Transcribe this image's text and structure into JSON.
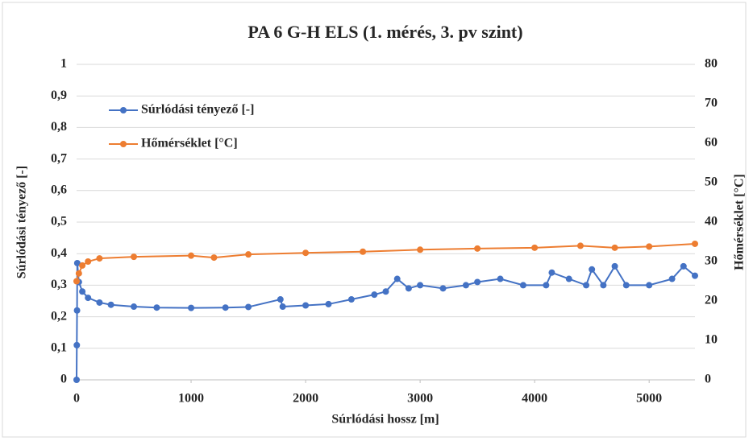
{
  "chart_data": {
    "type": "scatter",
    "title": "PA 6 G-H ELS (1. mérés, 3. pv szint)",
    "xlabel": "Súrlódási hossz [m]",
    "ylabel": "Súrlódási tényező [-]",
    "y2label": "Hőmérséklet [°C]",
    "xlim": [
      0,
      5400
    ],
    "xticks": [
      0,
      1000,
      2000,
      3000,
      4000,
      5000
    ],
    "ylim": [
      0,
      1
    ],
    "yticks": [
      0,
      {
        "value": 0.1,
        "label": "0,1"
      },
      {
        "value": 0.2,
        "label": "0,2"
      },
      {
        "value": 0.3,
        "label": "0,3"
      },
      {
        "value": 0.4,
        "label": "0,4"
      },
      {
        "value": 0.5,
        "label": "0,5"
      },
      {
        "value": 0.6,
        "label": "0,6"
      },
      {
        "value": 0.7,
        "label": "0,7"
      },
      {
        "value": 0.8,
        "label": "0,8"
      },
      {
        "value": 0.9,
        "label": "0,9"
      },
      1
    ],
    "y2lim": [
      0,
      80
    ],
    "y2ticks": [
      0,
      10,
      20,
      30,
      40,
      50,
      60,
      70,
      80
    ],
    "legend": "upper left",
    "series": [
      {
        "name": "Súrlódási tényező [-]",
        "color": "#4472c4",
        "x": [
          0,
          2,
          4,
          6,
          20,
          50,
          100,
          200,
          300,
          500,
          700,
          1000,
          1300,
          1500,
          1780,
          1800,
          2000,
          2200,
          2400,
          2600,
          2700,
          2800,
          2900,
          3000,
          3200,
          3400,
          3500,
          3700,
          3900,
          4100,
          4150,
          4300,
          4450,
          4500,
          4600,
          4700,
          4800,
          5000,
          5200,
          5300,
          5400
        ],
        "values": [
          0.0,
          0.11,
          0.22,
          0.37,
          0.31,
          0.28,
          0.26,
          0.245,
          0.238,
          0.232,
          0.229,
          0.228,
          0.229,
          0.231,
          0.255,
          0.232,
          0.236,
          0.24,
          0.255,
          0.27,
          0.28,
          0.32,
          0.29,
          0.3,
          0.29,
          0.3,
          0.31,
          0.32,
          0.3,
          0.3,
          0.34,
          0.32,
          0.3,
          0.35,
          0.3,
          0.36,
          0.3,
          0.3,
          0.32,
          0.36,
          0.33
        ]
      },
      {
        "name": "Hőmérséklet [°C]",
        "color": "#ed7d31",
        "axis": "y2",
        "x": [
          0,
          20,
          50,
          100,
          200,
          500,
          1000,
          1200,
          1500,
          2000,
          2500,
          3000,
          3500,
          4000,
          4400,
          4700,
          5000,
          5400
        ],
        "values": [
          25,
          27,
          29,
          30,
          30.8,
          31.2,
          31.5,
          31,
          31.8,
          32.2,
          32.5,
          33,
          33.3,
          33.5,
          34,
          33.5,
          33.8,
          34.5
        ]
      }
    ]
  }
}
